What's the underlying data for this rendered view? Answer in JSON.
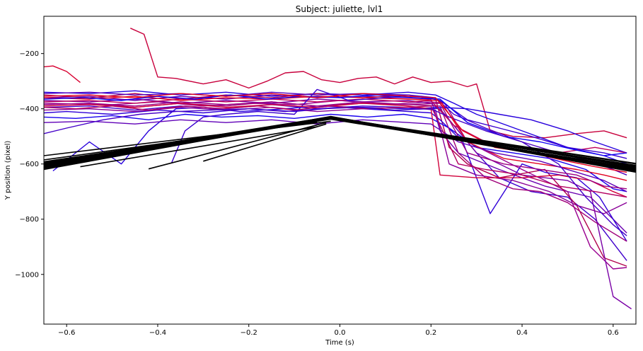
{
  "chart_data": {
    "type": "line",
    "title": "Subject: juliette, lvl1",
    "xlabel": "Time (s)",
    "ylabel": "Y position (pixel)",
    "xlim": [
      -0.65,
      0.65
    ],
    "ylim": [
      -1180,
      -65
    ],
    "x_ticks": [
      -0.6,
      -0.4,
      -0.2,
      0.0,
      0.2,
      0.4,
      0.6
    ],
    "y_ticks": [
      -200,
      -400,
      -600,
      -800,
      -1000
    ],
    "x_tick_labels": [
      "−0.6",
      "−0.4",
      "−0.2",
      "0.0",
      "0.2",
      "0.4",
      "0.6"
    ],
    "y_tick_labels": [
      "−200",
      "−400",
      "−600",
      "−800",
      "−1000"
    ],
    "grid": false,
    "legend": "none",
    "target_color": "#000000",
    "gaze_palette": [
      "#0000ff",
      "#ff0040"
    ],
    "target_series": [
      {
        "x": [
          -0.65,
          -0.02,
          0.65
        ],
        "y": [
          -615,
          -430,
          -620
        ]
      },
      {
        "x": [
          -0.65,
          -0.02,
          0.65
        ],
        "y": [
          -605,
          -432,
          -610
        ]
      },
      {
        "x": [
          -0.65,
          -0.02,
          0.65
        ],
        "y": [
          -598,
          -435,
          -605
        ]
      },
      {
        "x": [
          -0.65,
          -0.02,
          0.65
        ],
        "y": [
          -610,
          -428,
          -625
        ]
      },
      {
        "x": [
          -0.65,
          -0.02,
          0.65
        ],
        "y": [
          -592,
          -438,
          -615
        ]
      },
      {
        "x": [
          -0.65,
          -0.02,
          0.65
        ],
        "y": [
          -620,
          -431,
          -630
        ]
      },
      {
        "x": [
          -0.65,
          -0.02,
          0.65
        ],
        "y": [
          -600,
          -433,
          -600
        ]
      },
      {
        "x": [
          -0.65,
          -0.02,
          0.65
        ],
        "y": [
          -612,
          -436,
          -618
        ]
      },
      {
        "x": [
          -0.65,
          -0.02,
          0.65
        ],
        "y": [
          -595,
          -429,
          -612
        ]
      },
      {
        "x": [
          -0.65,
          -0.02,
          0.65
        ],
        "y": [
          -608,
          -434,
          -622
        ]
      },
      {
        "x": [
          -0.65,
          -0.02,
          0.65
        ],
        "y": [
          -602,
          -437,
          -608
        ]
      },
      {
        "x": [
          -0.65,
          -0.02,
          0.65
        ],
        "y": [
          -616,
          -430,
          -626
        ]
      },
      {
        "x": [
          -0.65,
          -0.02
        ],
        "y": [
          -570,
          -445
        ]
      },
      {
        "x": [
          -0.65,
          -0.05
        ],
        "y": [
          -585,
          -448
        ]
      },
      {
        "x": [
          -0.57,
          -0.05
        ],
        "y": [
          -610,
          -465
        ]
      },
      {
        "x": [
          -0.42,
          -0.03
        ],
        "y": [
          -618,
          -450
        ]
      },
      {
        "x": [
          -0.3,
          -0.03
        ],
        "y": [
          -590,
          -455
        ]
      },
      {
        "x": [
          -0.02,
          0.65
        ],
        "y": [
          -432,
          -598
        ]
      },
      {
        "x": [
          -0.02,
          0.65
        ],
        "y": [
          -430,
          -608
        ]
      }
    ],
    "gaze_series": [
      {
        "color": "#c8003c",
        "x": [
          -0.46,
          -0.43,
          -0.4,
          -0.36,
          -0.3,
          -0.25,
          -0.2,
          -0.16,
          -0.12,
          -0.08,
          -0.04,
          0.0,
          0.04,
          0.08,
          0.12,
          0.16,
          0.2,
          0.24,
          0.28,
          0.3,
          0.33,
          0.38,
          0.45,
          0.52,
          0.58,
          0.63
        ],
        "y": [
          -108,
          -130,
          -285,
          -290,
          -310,
          -295,
          -325,
          -300,
          -270,
          -265,
          -295,
          -305,
          -290,
          -285,
          -310,
          -285,
          -305,
          -300,
          -320,
          -310,
          -480,
          -500,
          -505,
          -490,
          -480,
          -505
        ]
      },
      {
        "color": "#d80030",
        "x": [
          -0.65,
          -0.63,
          -0.6,
          -0.57
        ],
        "y": [
          -248,
          -245,
          -265,
          -305
        ]
      },
      {
        "color": "#2200e0",
        "x": [
          -0.65,
          -0.55,
          -0.45,
          -0.35,
          -0.25,
          -0.15,
          -0.05,
          0.05,
          0.15,
          0.21,
          0.25,
          0.3,
          0.4,
          0.5,
          0.58,
          0.63
        ],
        "y": [
          -340,
          -345,
          -335,
          -350,
          -340,
          -355,
          -345,
          -350,
          -340,
          -350,
          -380,
          -420,
          -480,
          -540,
          -570,
          -600
        ]
      },
      {
        "color": "#6a00b0",
        "x": [
          -0.65,
          -0.55,
          -0.45,
          -0.35,
          -0.25,
          -0.15,
          -0.05,
          0.05,
          0.15,
          0.2,
          0.22,
          0.26,
          0.35,
          0.45,
          0.55,
          0.6,
          0.63
        ],
        "y": [
          -360,
          -355,
          -370,
          -355,
          -365,
          -350,
          -360,
          -355,
          -360,
          -365,
          -480,
          -560,
          -620,
          -680,
          -720,
          -800,
          -850
        ]
      },
      {
        "color": "#9a0090",
        "x": [
          -0.65,
          -0.5,
          -0.4,
          -0.3,
          -0.2,
          -0.1,
          0.0,
          0.1,
          0.2,
          0.23,
          0.28,
          0.4,
          0.5,
          0.55,
          0.6,
          0.63
        ],
        "y": [
          -380,
          -385,
          -375,
          -390,
          -380,
          -385,
          -370,
          -385,
          -375,
          -380,
          -520,
          -620,
          -700,
          -900,
          -980,
          -975
        ]
      },
      {
        "color": "#4000cc",
        "x": [
          -0.65,
          -0.55,
          -0.45,
          -0.35,
          -0.25,
          -0.15,
          -0.05,
          0.05,
          0.15,
          0.22,
          0.3,
          0.35,
          0.42,
          0.5,
          0.56,
          0.63
        ],
        "y": [
          -395,
          -390,
          -405,
          -390,
          -400,
          -385,
          -400,
          -390,
          -395,
          -400,
          -560,
          -650,
          -700,
          -720,
          -800,
          -950
        ]
      },
      {
        "color": "#b0004c",
        "x": [
          -0.65,
          -0.55,
          -0.45,
          -0.35,
          -0.25,
          -0.15,
          -0.05,
          0.05,
          0.15,
          0.21,
          0.24,
          0.28,
          0.35,
          0.45,
          0.52,
          0.58,
          0.63
        ],
        "y": [
          -350,
          -360,
          -345,
          -365,
          -350,
          -360,
          -345,
          -360,
          -350,
          -365,
          -540,
          -600,
          -650,
          -620,
          -750,
          -940,
          -970
        ]
      },
      {
        "color": "#3000d8",
        "x": [
          -0.65,
          -0.6,
          -0.5,
          -0.4,
          -0.3,
          -0.2,
          -0.1,
          0.0,
          0.1,
          0.2,
          0.22,
          0.27,
          0.33,
          0.4,
          0.45,
          0.52,
          0.57,
          0.63
        ],
        "y": [
          -415,
          -410,
          -420,
          -405,
          -415,
          -400,
          -410,
          -395,
          -405,
          -415,
          -440,
          -520,
          -780,
          -600,
          -630,
          -650,
          -720,
          -880
        ]
      },
      {
        "color": "#7a00a6",
        "x": [
          -0.65,
          -0.55,
          -0.45,
          -0.35,
          -0.25,
          -0.15,
          -0.05,
          0.05,
          0.15,
          0.2,
          0.23,
          0.3,
          0.4,
          0.5,
          0.55,
          0.6,
          0.64
        ],
        "y": [
          -370,
          -375,
          -365,
          -380,
          -370,
          -380,
          -365,
          -375,
          -370,
          -380,
          -420,
          -560,
          -640,
          -660,
          -700,
          -1080,
          -1125
        ]
      },
      {
        "color": "#1800ee",
        "x": [
          -0.65,
          -0.58,
          -0.5,
          -0.42,
          -0.34,
          -0.26,
          -0.18,
          -0.1,
          -0.02,
          0.06,
          0.14,
          0.2,
          0.24,
          0.3,
          0.38,
          0.46,
          0.54,
          0.6,
          0.63
        ],
        "y": [
          -430,
          -435,
          -425,
          -440,
          -420,
          -430,
          -425,
          -435,
          -420,
          -430,
          -420,
          -435,
          -470,
          -540,
          -560,
          -580,
          -620,
          -690,
          -700
        ]
      },
      {
        "color": "#a0007a",
        "x": [
          -0.65,
          -0.55,
          -0.45,
          -0.35,
          -0.25,
          -0.15,
          -0.05,
          0.05,
          0.15,
          0.22,
          0.26,
          0.32,
          0.38,
          0.44,
          0.5,
          0.56,
          0.63
        ],
        "y": [
          -385,
          -380,
          -395,
          -380,
          -390,
          -375,
          -390,
          -380,
          -385,
          -390,
          -560,
          -650,
          -690,
          -700,
          -740,
          -810,
          -880
        ]
      },
      {
        "color": "#5000c0",
        "x": [
          -0.65,
          -0.55,
          -0.45,
          -0.35,
          -0.25,
          -0.15,
          -0.05,
          0.05,
          0.15,
          0.21,
          0.25,
          0.32,
          0.4,
          0.48,
          0.55,
          0.6,
          0.63
        ],
        "y": [
          -345,
          -340,
          -350,
          -345,
          -355,
          -340,
          -350,
          -345,
          -350,
          -360,
          -420,
          -470,
          -520,
          -560,
          -590,
          -620,
          -640
        ]
      },
      {
        "color": "#e00020",
        "x": [
          -0.65,
          -0.55,
          -0.45,
          -0.35,
          -0.25,
          -0.15,
          -0.05,
          0.05,
          0.15,
          0.22,
          0.28,
          0.36,
          0.44,
          0.52,
          0.58,
          0.63
        ],
        "y": [
          -360,
          -365,
          -355,
          -370,
          -360,
          -365,
          -355,
          -360,
          -365,
          -370,
          -520,
          -580,
          -600,
          -620,
          -640,
          -660
        ]
      },
      {
        "color": "#2800dc",
        "x": [
          -0.63,
          -0.55,
          -0.48,
          -0.42,
          -0.36,
          -0.3,
          -0.22,
          -0.12,
          -0.05,
          0.05,
          0.15,
          0.22,
          0.28,
          0.35,
          0.42,
          0.5,
          0.56,
          0.63
        ],
        "y": [
          -625,
          -520,
          -600,
          -480,
          -400,
          -395,
          -410,
          -400,
          -390,
          -395,
          -400,
          -395,
          -400,
          -420,
          -440,
          -480,
          -520,
          -560
        ]
      },
      {
        "color": "#8a0098",
        "x": [
          -0.65,
          -0.55,
          -0.45,
          -0.35,
          -0.25,
          -0.15,
          -0.05,
          0.05,
          0.15,
          0.21,
          0.24,
          0.3,
          0.38,
          0.46,
          0.52,
          0.58,
          0.63
        ],
        "y": [
          -405,
          -400,
          -410,
          -395,
          -405,
          -395,
          -410,
          -400,
          -395,
          -405,
          -600,
          -640,
          -660,
          -700,
          -750,
          -780,
          -740
        ]
      },
      {
        "color": "#c0005a",
        "x": [
          -0.65,
          -0.55,
          -0.45,
          -0.35,
          -0.25,
          -0.15,
          -0.05,
          0.05,
          0.15,
          0.2,
          0.25,
          0.32,
          0.4,
          0.48,
          0.56,
          0.63
        ],
        "y": [
          -375,
          -370,
          -380,
          -365,
          -375,
          -365,
          -375,
          -365,
          -375,
          -370,
          -460,
          -520,
          -540,
          -560,
          -540,
          -560
        ]
      },
      {
        "color": "#3a00d0",
        "x": [
          -0.37,
          -0.34,
          -0.3,
          -0.25,
          -0.18,
          -0.1,
          -0.05,
          0.02,
          0.1,
          0.18,
          0.22,
          0.28,
          0.35,
          0.42,
          0.5,
          0.58,
          0.63
        ],
        "y": [
          -598,
          -480,
          -430,
          -420,
          -410,
          -420,
          -330,
          -370,
          -360,
          -355,
          -370,
          -440,
          -470,
          -500,
          -540,
          -560,
          -580
        ]
      },
      {
        "color": "#d0003a",
        "x": [
          -0.65,
          -0.55,
          -0.45,
          -0.35,
          -0.25,
          -0.15,
          -0.05,
          0.05,
          0.15,
          0.2,
          0.22,
          0.3,
          0.4,
          0.48,
          0.55,
          0.6,
          0.63
        ],
        "y": [
          -390,
          -385,
          -395,
          -380,
          -395,
          -385,
          -395,
          -380,
          -390,
          -400,
          -640,
          -650,
          -650,
          -640,
          -660,
          -700,
          -720
        ]
      },
      {
        "color": "#6000b8",
        "x": [
          -0.65,
          -0.55,
          -0.45,
          -0.35,
          -0.25,
          -0.15,
          -0.05,
          0.05,
          0.15,
          0.2,
          0.26,
          0.34,
          0.44,
          0.52,
          0.58,
          0.63
        ],
        "y": [
          -450,
          -445,
          -455,
          -440,
          -450,
          -440,
          -455,
          -440,
          -450,
          -455,
          -520,
          -560,
          -590,
          -630,
          -660,
          -700
        ]
      },
      {
        "color": "#1000f4",
        "x": [
          -0.65,
          -0.56,
          -0.48,
          -0.4,
          -0.32,
          -0.24,
          -0.16,
          -0.08,
          0.0,
          0.08,
          0.16,
          0.22,
          0.28,
          0.36,
          0.44,
          0.52,
          0.58,
          0.63
        ],
        "y": [
          -365,
          -360,
          -370,
          -355,
          -365,
          -350,
          -365,
          -355,
          -360,
          -350,
          -360,
          -365,
          -450,
          -500,
          -520,
          -550,
          -570,
          -560
        ]
      },
      {
        "color": "#b40060",
        "x": [
          -0.65,
          -0.58,
          -0.5,
          -0.42,
          -0.34,
          -0.26,
          -0.18,
          -0.1,
          -0.02,
          0.06,
          0.14,
          0.2,
          0.26,
          0.32,
          0.4,
          0.48,
          0.56,
          0.63
        ],
        "y": [
          -395,
          -400,
          -390,
          -405,
          -390,
          -400,
          -390,
          -405,
          -390,
          -400,
          -395,
          -390,
          -600,
          -620,
          -640,
          -680,
          -700,
          -720
        ]
      },
      {
        "color": "#4400c8",
        "x": [
          -0.65,
          -0.6,
          -0.52,
          -0.44,
          -0.36,
          -0.28,
          -0.2,
          -0.12,
          -0.04,
          0.04,
          0.12,
          0.2,
          0.24,
          0.32,
          0.4,
          0.48,
          0.54,
          0.6,
          0.63
        ],
        "y": [
          -490,
          -470,
          -440,
          -420,
          -410,
          -405,
          -400,
          -410,
          -400,
          -395,
          -405,
          -400,
          -430,
          -480,
          -520,
          -600,
          -720,
          -820,
          -860
        ]
      },
      {
        "color": "#9c0084",
        "x": [
          -0.65,
          -0.55,
          -0.45,
          -0.35,
          -0.25,
          -0.15,
          -0.05,
          0.05,
          0.15,
          0.22,
          0.28,
          0.36,
          0.44,
          0.52,
          0.58,
          0.63
        ],
        "y": [
          -385,
          -380,
          -390,
          -375,
          -385,
          -375,
          -390,
          -375,
          -385,
          -380,
          -560,
          -600,
          -620,
          -640,
          -680,
          -690
        ]
      },
      {
        "color": "#e4001c",
        "x": [
          -0.65,
          -0.55,
          -0.45,
          -0.35,
          -0.25,
          -0.15,
          -0.05,
          0.05,
          0.15,
          0.21,
          0.27,
          0.34,
          0.42,
          0.5,
          0.56,
          0.63
        ],
        "y": [
          -355,
          -350,
          -360,
          -345,
          -355,
          -345,
          -360,
          -345,
          -355,
          -360,
          -480,
          -540,
          -560,
          -590,
          -610,
          -630
        ]
      }
    ]
  }
}
